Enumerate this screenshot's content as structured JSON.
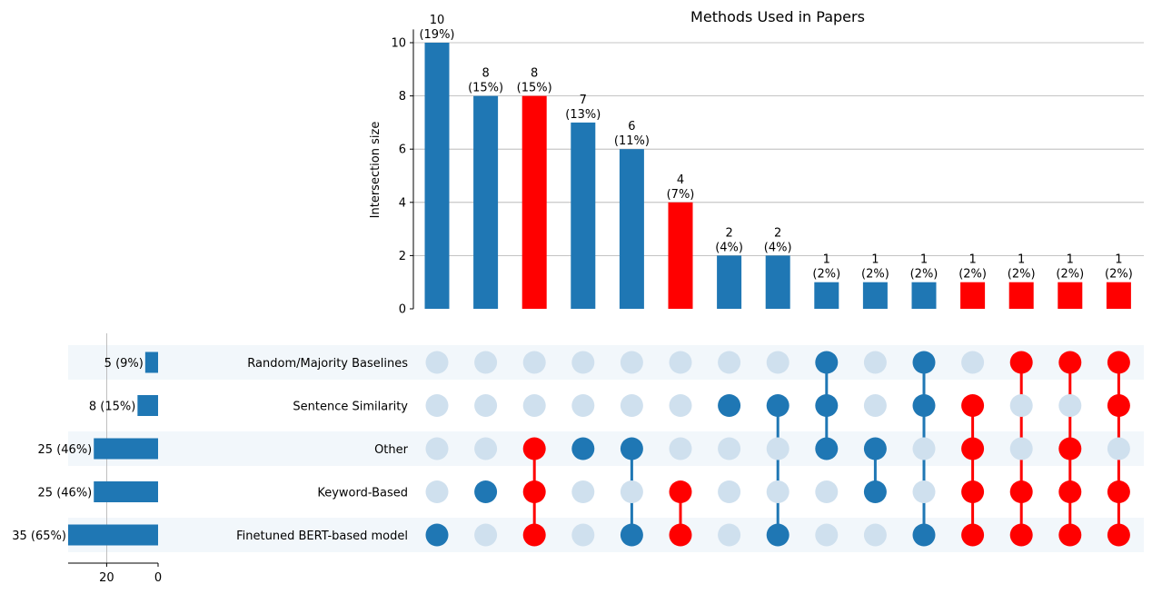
{
  "chart_data": {
    "type": "upset",
    "title": "Methods Used in Papers",
    "ylabel": "Intersection size",
    "ylim": [
      0,
      10.5
    ],
    "yticks": [
      0,
      2,
      4,
      6,
      8,
      10
    ],
    "set_xticks": [
      20,
      0
    ],
    "set_xlim": [
      35,
      0
    ],
    "sets": [
      {
        "name": "Random/Majority Baselines",
        "size": 5,
        "label": "5 (9%)"
      },
      {
        "name": "Sentence Similarity",
        "size": 8,
        "label": "8 (15%)"
      },
      {
        "name": "Other",
        "size": 25,
        "label": "25 (46%)"
      },
      {
        "name": "Keyword-Based",
        "size": 25,
        "label": "25 (46%)"
      },
      {
        "name": "Finetuned BERT-based model",
        "size": 35,
        "label": "35 (65%)"
      }
    ],
    "intersections": [
      {
        "members": [
          "Finetuned BERT-based model"
        ],
        "size": 10,
        "count_label": "10",
        "pct_label": "(19%)",
        "highlight": false
      },
      {
        "members": [
          "Keyword-Based"
        ],
        "size": 8,
        "count_label": "8",
        "pct_label": "(15%)",
        "highlight": false
      },
      {
        "members": [
          "Other",
          "Keyword-Based",
          "Finetuned BERT-based model"
        ],
        "size": 8,
        "count_label": "8",
        "pct_label": "(15%)",
        "highlight": true
      },
      {
        "members": [
          "Other"
        ],
        "size": 7,
        "count_label": "7",
        "pct_label": "(13%)",
        "highlight": false
      },
      {
        "members": [
          "Other",
          "Finetuned BERT-based model"
        ],
        "size": 6,
        "count_label": "6",
        "pct_label": "(11%)",
        "highlight": false
      },
      {
        "members": [
          "Keyword-Based",
          "Finetuned BERT-based model"
        ],
        "size": 4,
        "count_label": "4",
        "pct_label": "(7%)",
        "highlight": true
      },
      {
        "members": [
          "Sentence Similarity"
        ],
        "size": 2,
        "count_label": "2",
        "pct_label": "(4%)",
        "highlight": false
      },
      {
        "members": [
          "Sentence Similarity",
          "Finetuned BERT-based model"
        ],
        "size": 2,
        "count_label": "2",
        "pct_label": "(4%)",
        "highlight": false
      },
      {
        "members": [
          "Random/Majority Baselines",
          "Sentence Similarity",
          "Other"
        ],
        "size": 1,
        "count_label": "1",
        "pct_label": "(2%)",
        "highlight": false
      },
      {
        "members": [
          "Other",
          "Keyword-Based"
        ],
        "size": 1,
        "count_label": "1",
        "pct_label": "(2%)",
        "highlight": false
      },
      {
        "members": [
          "Random/Majority Baselines",
          "Sentence Similarity",
          "Finetuned BERT-based model"
        ],
        "size": 1,
        "count_label": "1",
        "pct_label": "(2%)",
        "highlight": false
      },
      {
        "members": [
          "Sentence Similarity",
          "Other",
          "Keyword-Based",
          "Finetuned BERT-based model"
        ],
        "size": 1,
        "count_label": "1",
        "pct_label": "(2%)",
        "highlight": true
      },
      {
        "members": [
          "Random/Majority Baselines",
          "Keyword-Based",
          "Finetuned BERT-based model"
        ],
        "size": 1,
        "count_label": "1",
        "pct_label": "(2%)",
        "highlight": true
      },
      {
        "members": [
          "Random/Majority Baselines",
          "Other",
          "Keyword-Based",
          "Finetuned BERT-based model"
        ],
        "size": 1,
        "count_label": "1",
        "pct_label": "(2%)",
        "highlight": true
      },
      {
        "members": [
          "Random/Majority Baselines",
          "Sentence Similarity",
          "Keyword-Based",
          "Finetuned BERT-based model"
        ],
        "size": 1,
        "count_label": "1",
        "pct_label": "(2%)",
        "highlight": true
      }
    ],
    "colors": {
      "bar": "#1f77b4",
      "highlight": "#ff0000",
      "inactive_dot": "#cfe0ee",
      "row_band": "#f2f7fb",
      "grid": "#b0b0b0"
    }
  }
}
